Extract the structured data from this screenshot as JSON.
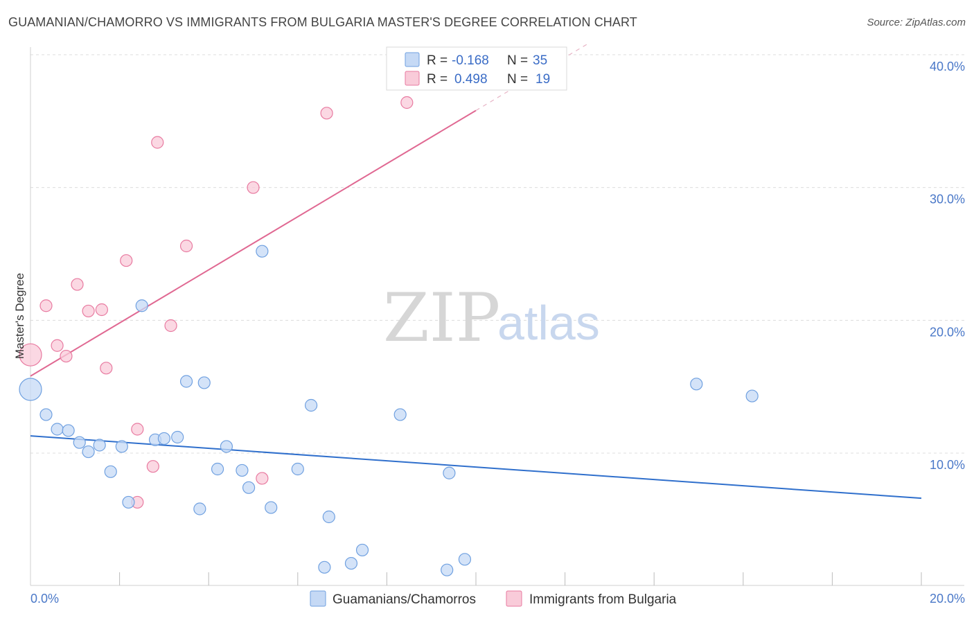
{
  "title": "GUAMANIAN/CHAMORRO VS IMMIGRANTS FROM BULGARIA MASTER'S DEGREE CORRELATION CHART",
  "source": "Source: ZipAtlas.com",
  "watermark": {
    "zip": "ZIP",
    "atlas": "atlas"
  },
  "colors": {
    "blue": "#6fa0e0",
    "blue_fill": "#c5d9f5",
    "pink": "#e87aa0",
    "pink_fill": "#f9cbd9",
    "blue_line": "#2f6fcc",
    "pink_line": "#e06892",
    "tick_text": "#4a78c8"
  },
  "legend": {
    "rows": [
      {
        "r_label": "R =",
        "r_value": "-0.168",
        "n_label": "N =",
        "n_value": "35"
      },
      {
        "r_label": "R =",
        "r_value": "0.498",
        "n_label": "N =",
        "n_value": "19"
      }
    ]
  },
  "chart_data": {
    "type": "scatter",
    "title": "GUAMANIAN/CHAMORRO VS IMMIGRANTS FROM BULGARIA MASTER'S DEGREE CORRELATION CHART",
    "xlabel": "",
    "ylabel": "Master's Degree",
    "xlim": [
      0,
      20
    ],
    "ylim": [
      0,
      42
    ],
    "x_tick_labels": [
      "0.0%",
      "20.0%"
    ],
    "y_ticks": [
      10,
      20,
      30,
      40
    ],
    "y_tick_labels": [
      "10.0%",
      "20.0%",
      "30.0%",
      "40.0%"
    ],
    "grid": true,
    "series": [
      {
        "name": "Guamanians/Chamorros",
        "color": "#6fa0e0",
        "points": [
          {
            "x": 0.0,
            "y": 14.8,
            "big": true
          },
          {
            "x": 0.35,
            "y": 12.9
          },
          {
            "x": 0.6,
            "y": 11.8
          },
          {
            "x": 0.85,
            "y": 11.7
          },
          {
            "x": 1.1,
            "y": 10.8
          },
          {
            "x": 1.3,
            "y": 10.1
          },
          {
            "x": 1.55,
            "y": 10.6
          },
          {
            "x": 1.8,
            "y": 8.6
          },
          {
            "x": 2.05,
            "y": 10.5
          },
          {
            "x": 2.2,
            "y": 6.3
          },
          {
            "x": 2.5,
            "y": 21.1
          },
          {
            "x": 2.8,
            "y": 11.0
          },
          {
            "x": 3.0,
            "y": 11.1
          },
          {
            "x": 3.3,
            "y": 11.2
          },
          {
            "x": 3.5,
            "y": 15.4
          },
          {
            "x": 3.8,
            "y": 5.8
          },
          {
            "x": 3.9,
            "y": 15.3
          },
          {
            "x": 4.2,
            "y": 8.8
          },
          {
            "x": 4.4,
            "y": 10.5
          },
          {
            "x": 4.75,
            "y": 8.7
          },
          {
            "x": 4.9,
            "y": 7.4
          },
          {
            "x": 5.2,
            "y": 25.2
          },
          {
            "x": 5.4,
            "y": 5.9
          },
          {
            "x": 6.0,
            "y": 8.8
          },
          {
            "x": 6.3,
            "y": 13.6
          },
          {
            "x": 6.6,
            "y": 1.4
          },
          {
            "x": 6.7,
            "y": 5.2
          },
          {
            "x": 7.2,
            "y": 1.7
          },
          {
            "x": 7.45,
            "y": 2.7
          },
          {
            "x": 8.3,
            "y": 12.9
          },
          {
            "x": 9.35,
            "y": 1.2
          },
          {
            "x": 9.4,
            "y": 8.5
          },
          {
            "x": 9.75,
            "y": 2.0
          },
          {
            "x": 14.95,
            "y": 15.2
          },
          {
            "x": 16.2,
            "y": 14.3
          }
        ],
        "trend": {
          "x0": 0,
          "y0": 11.3,
          "x1": 20,
          "y1": 6.6
        }
      },
      {
        "name": "Immigrants from Bulgaria",
        "color": "#e87aa0",
        "points": [
          {
            "x": 0.0,
            "y": 17.4,
            "big": true
          },
          {
            "x": 0.35,
            "y": 21.1
          },
          {
            "x": 0.6,
            "y": 18.1
          },
          {
            "x": 0.8,
            "y": 17.3
          },
          {
            "x": 1.05,
            "y": 22.7
          },
          {
            "x": 1.3,
            "y": 20.7
          },
          {
            "x": 1.6,
            "y": 20.8
          },
          {
            "x": 1.7,
            "y": 16.4
          },
          {
            "x": 2.15,
            "y": 24.5
          },
          {
            "x": 2.4,
            "y": 11.8
          },
          {
            "x": 2.4,
            "y": 6.3
          },
          {
            "x": 2.75,
            "y": 9.0
          },
          {
            "x": 2.85,
            "y": 33.4
          },
          {
            "x": 3.15,
            "y": 19.6
          },
          {
            "x": 3.5,
            "y": 25.6
          },
          {
            "x": 5.0,
            "y": 30.0
          },
          {
            "x": 5.2,
            "y": 8.1
          },
          {
            "x": 6.65,
            "y": 35.6
          },
          {
            "x": 8.45,
            "y": 36.4
          }
        ],
        "trend": {
          "x0": 0,
          "y0": 15.8,
          "x1": 10.0,
          "y1": 35.8,
          "dash_to_x": 12.5
        }
      }
    ]
  },
  "bottom_legend": [
    {
      "label": "Guamanians/Chamorros"
    },
    {
      "label": "Immigrants from Bulgaria"
    }
  ]
}
